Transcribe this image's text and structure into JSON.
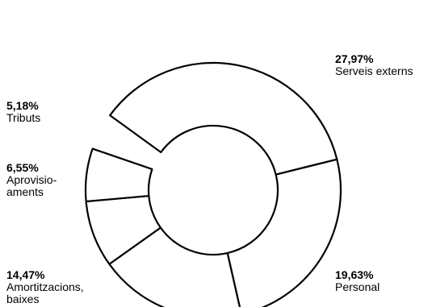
{
  "chart_data": {
    "type": "pie",
    "donut": true,
    "slices": [
      {
        "name": "Serveis externs",
        "value": 27.97,
        "value_label": "27,97%"
      },
      {
        "name": "Personal",
        "value": 19.63,
        "value_label": "19,63%"
      },
      {
        "name": "Amortitzacions,\nbaixes",
        "value": 14.47,
        "value_label": "14,47%"
      },
      {
        "name": "Aprovisio-\naments",
        "value": 6.55,
        "value_label": "6,55%"
      },
      {
        "name": "Tributs",
        "value": 5.18,
        "value_label": "5,18%"
      }
    ],
    "title": "",
    "legend": "none",
    "colors": {
      "fill": "#ffffff",
      "stroke": "#000000"
    }
  }
}
